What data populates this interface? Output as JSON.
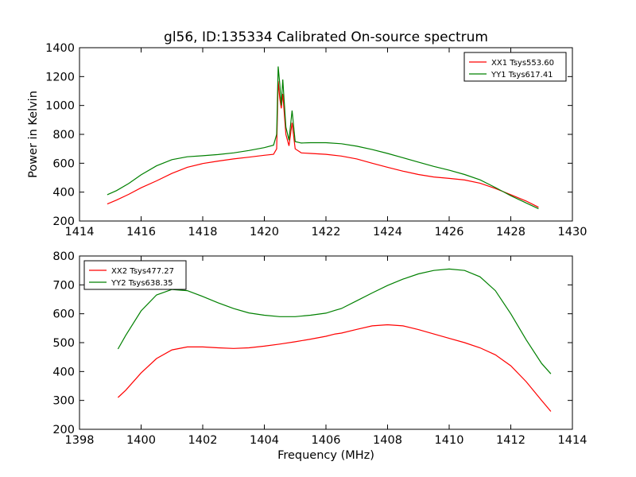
{
  "title": "gl56, ID:135334 Calibrated On-source spectrum",
  "chart_data": [
    {
      "type": "line",
      "ylabel": "Power in Kelvin",
      "xlabel": "",
      "xlim": [
        1414,
        1430
      ],
      "ylim": [
        200,
        1400
      ],
      "xticks": [
        1414,
        1416,
        1418,
        1420,
        1422,
        1424,
        1426,
        1428,
        1430
      ],
      "yticks": [
        200,
        400,
        600,
        800,
        1000,
        1200,
        1400
      ],
      "legend_position": "upper right",
      "series": [
        {
          "name": "XX1 Tsys553.60",
          "color": "#ff0000",
          "points": [
            [
              1414.9,
              318
            ],
            [
              1415.2,
              345
            ],
            [
              1415.6,
              385
            ],
            [
              1416.0,
              430
            ],
            [
              1416.5,
              478
            ],
            [
              1417.0,
              530
            ],
            [
              1417.5,
              572
            ],
            [
              1418.0,
              598
            ],
            [
              1418.5,
              615
            ],
            [
              1419.0,
              630
            ],
            [
              1419.5,
              642
            ],
            [
              1420.0,
              655
            ],
            [
              1420.3,
              662
            ],
            [
              1420.4,
              700
            ],
            [
              1420.45,
              1170
            ],
            [
              1420.5,
              1050
            ],
            [
              1420.55,
              980
            ],
            [
              1420.6,
              1080
            ],
            [
              1420.7,
              800
            ],
            [
              1420.8,
              720
            ],
            [
              1420.9,
              880
            ],
            [
              1421.0,
              700
            ],
            [
              1421.2,
              672
            ],
            [
              1421.5,
              668
            ],
            [
              1422.0,
              662
            ],
            [
              1422.5,
              650
            ],
            [
              1423.0,
              630
            ],
            [
              1423.5,
              600
            ],
            [
              1424.0,
              572
            ],
            [
              1424.5,
              545
            ],
            [
              1425.0,
              522
            ],
            [
              1425.5,
              505
            ],
            [
              1426.0,
              495
            ],
            [
              1426.5,
              484
            ],
            [
              1427.0,
              462
            ],
            [
              1427.5,
              425
            ],
            [
              1428.0,
              382
            ],
            [
              1428.5,
              338
            ],
            [
              1428.9,
              295
            ]
          ]
        },
        {
          "name": "YY1 Tsys617.41",
          "color": "#008000",
          "points": [
            [
              1414.9,
              382
            ],
            [
              1415.2,
              410
            ],
            [
              1415.6,
              460
            ],
            [
              1416.0,
              520
            ],
            [
              1416.5,
              582
            ],
            [
              1417.0,
              625
            ],
            [
              1417.5,
              645
            ],
            [
              1418.0,
              652
            ],
            [
              1418.5,
              660
            ],
            [
              1419.0,
              672
            ],
            [
              1419.5,
              688
            ],
            [
              1420.0,
              708
            ],
            [
              1420.3,
              725
            ],
            [
              1420.4,
              800
            ],
            [
              1420.45,
              1270
            ],
            [
              1420.5,
              1150
            ],
            [
              1420.55,
              1000
            ],
            [
              1420.6,
              1180
            ],
            [
              1420.7,
              850
            ],
            [
              1420.8,
              760
            ],
            [
              1420.9,
              965
            ],
            [
              1421.0,
              750
            ],
            [
              1421.2,
              740
            ],
            [
              1421.5,
              742
            ],
            [
              1422.0,
              742
            ],
            [
              1422.5,
              735
            ],
            [
              1423.0,
              718
            ],
            [
              1423.5,
              695
            ],
            [
              1424.0,
              668
            ],
            [
              1424.5,
              638
            ],
            [
              1425.0,
              608
            ],
            [
              1425.5,
              578
            ],
            [
              1426.0,
              552
            ],
            [
              1426.5,
              522
            ],
            [
              1427.0,
              485
            ],
            [
              1427.5,
              432
            ],
            [
              1428.0,
              375
            ],
            [
              1428.5,
              325
            ],
            [
              1428.9,
              285
            ]
          ]
        }
      ]
    },
    {
      "type": "line",
      "ylabel": "",
      "xlabel": "Frequency (MHz)",
      "xlim": [
        1398,
        1414
      ],
      "ylim": [
        200,
        800
      ],
      "xticks": [
        1398,
        1400,
        1402,
        1404,
        1406,
        1408,
        1410,
        1412,
        1414
      ],
      "yticks": [
        200,
        300,
        400,
        500,
        600,
        700,
        800
      ],
      "legend_position": "upper left",
      "series": [
        {
          "name": "XX2 Tsys477.27",
          "color": "#ff0000",
          "points": [
            [
              1399.25,
              310
            ],
            [
              1399.5,
              335
            ],
            [
              1400.0,
              395
            ],
            [
              1400.5,
              445
            ],
            [
              1401.0,
              475
            ],
            [
              1401.5,
              485
            ],
            [
              1402.0,
              485
            ],
            [
              1402.5,
              482
            ],
            [
              1403.0,
              480
            ],
            [
              1403.5,
              482
            ],
            [
              1404.0,
              488
            ],
            [
              1404.5,
              495
            ],
            [
              1405.0,
              503
            ],
            [
              1405.5,
              512
            ],
            [
              1406.0,
              522
            ],
            [
              1406.3,
              530
            ],
            [
              1406.5,
              533
            ],
            [
              1407.0,
              546
            ],
            [
              1407.5,
              558
            ],
            [
              1408.0,
              562
            ],
            [
              1408.5,
              558
            ],
            [
              1409.0,
              545
            ],
            [
              1409.5,
              530
            ],
            [
              1410.0,
              515
            ],
            [
              1410.5,
              500
            ],
            [
              1411.0,
              482
            ],
            [
              1411.5,
              458
            ],
            [
              1412.0,
              420
            ],
            [
              1412.5,
              365
            ],
            [
              1413.0,
              300
            ],
            [
              1413.3,
              262
            ]
          ]
        },
        {
          "name": "YY2 Tsys638.35",
          "color": "#008000",
          "points": [
            [
              1399.25,
              478
            ],
            [
              1399.5,
              525
            ],
            [
              1400.0,
              610
            ],
            [
              1400.5,
              665
            ],
            [
              1401.0,
              684
            ],
            [
              1401.5,
              680
            ],
            [
              1402.0,
              660
            ],
            [
              1402.5,
              638
            ],
            [
              1403.0,
              618
            ],
            [
              1403.5,
              603
            ],
            [
              1404.0,
              595
            ],
            [
              1404.5,
              590
            ],
            [
              1405.0,
              590
            ],
            [
              1405.5,
              595
            ],
            [
              1406.0,
              602
            ],
            [
              1406.3,
              612
            ],
            [
              1406.5,
              618
            ],
            [
              1407.0,
              645
            ],
            [
              1407.5,
              672
            ],
            [
              1408.0,
              698
            ],
            [
              1408.5,
              720
            ],
            [
              1409.0,
              738
            ],
            [
              1409.5,
              750
            ],
            [
              1410.0,
              755
            ],
            [
              1410.5,
              750
            ],
            [
              1411.0,
              728
            ],
            [
              1411.5,
              680
            ],
            [
              1412.0,
              600
            ],
            [
              1412.5,
              510
            ],
            [
              1413.0,
              428
            ],
            [
              1413.3,
              392
            ]
          ]
        }
      ]
    }
  ]
}
